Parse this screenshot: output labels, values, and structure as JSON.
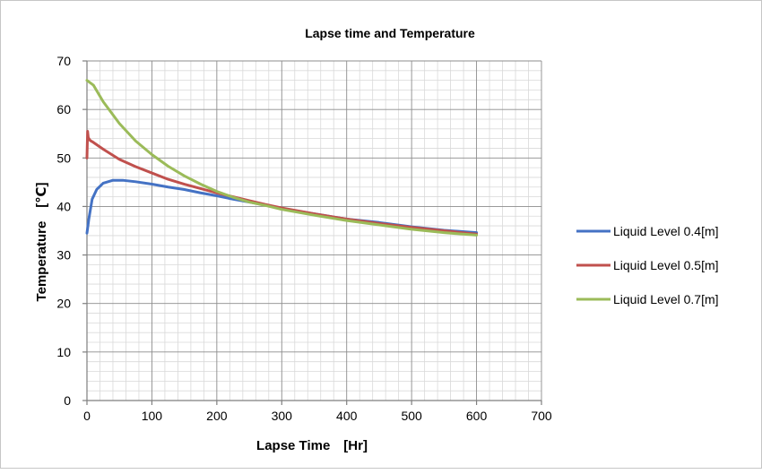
{
  "chart_data": {
    "type": "line",
    "title": "Lapse time and Temperature",
    "xlabel": "Lapse Time　[Hr]",
    "ylabel": "Temperature　[℃]",
    "xlim": [
      0,
      700
    ],
    "ylim": [
      0,
      70
    ],
    "xticks": [
      0,
      100,
      200,
      300,
      400,
      500,
      600,
      700
    ],
    "yticks": [
      0,
      10,
      20,
      30,
      40,
      50,
      60,
      70
    ],
    "grid": true,
    "legend_position": "right",
    "series": [
      {
        "name": "Liquid Level 0.4[m]",
        "color": "#4472C4",
        "x": [
          0,
          3,
          8,
          15,
          25,
          40,
          55,
          75,
          100,
          125,
          150,
          175,
          200,
          225,
          250,
          275,
          300,
          350,
          400,
          450,
          500,
          550,
          600
        ],
        "y": [
          34.5,
          37.5,
          41.5,
          43.5,
          44.8,
          45.4,
          45.4,
          45.1,
          44.6,
          44.0,
          43.5,
          42.8,
          42.2,
          41.5,
          40.9,
          40.3,
          39.6,
          38.5,
          37.4,
          36.7,
          35.8,
          35.1,
          34.6
        ]
      },
      {
        "name": "Liquid Level 0.5[m]",
        "color": "#C0504D",
        "x": [
          0,
          1,
          2,
          5,
          10,
          25,
          50,
          75,
          100,
          125,
          150,
          175,
          200,
          225,
          250,
          275,
          300,
          350,
          400,
          450,
          500,
          550,
          600
        ],
        "y": [
          50.0,
          55.5,
          54.2,
          53.6,
          53.2,
          51.8,
          49.7,
          48.2,
          46.9,
          45.6,
          44.6,
          43.7,
          42.8,
          42.0,
          41.2,
          40.4,
          39.7,
          38.5,
          37.4,
          36.5,
          35.7,
          35.0,
          34.3
        ]
      },
      {
        "name": "Liquid Level 0.7[m]",
        "color": "#9BBB59",
        "x": [
          0,
          10,
          25,
          50,
          75,
          100,
          125,
          150,
          175,
          200,
          225,
          250,
          275,
          300,
          350,
          400,
          450,
          500,
          550,
          600
        ],
        "y": [
          66.0,
          65.0,
          61.6,
          57.1,
          53.5,
          50.7,
          48.3,
          46.3,
          44.6,
          43.1,
          41.9,
          40.9,
          40.2,
          39.4,
          38.2,
          37.1,
          36.2,
          35.3,
          34.6,
          34.1
        ]
      }
    ]
  }
}
